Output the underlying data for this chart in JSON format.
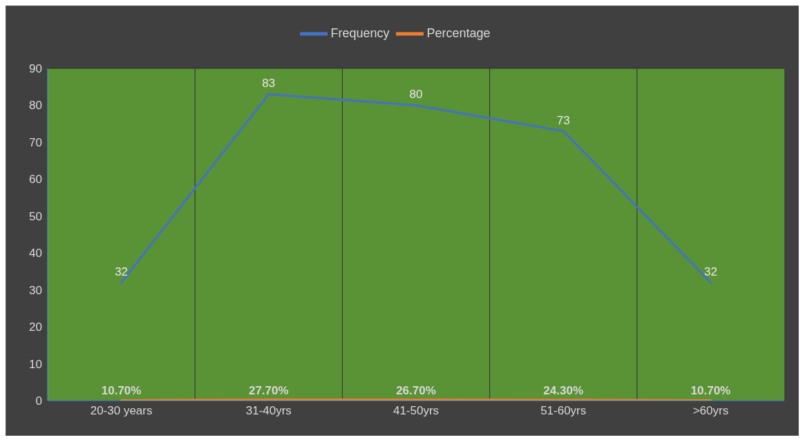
{
  "chart_data": {
    "type": "line",
    "categories": [
      "20-30 years",
      "31-40yrs",
      "41-50yrs",
      "51-60yrs",
      ">60yrs"
    ],
    "series": [
      {
        "name": "Frequency",
        "color": "#4472c4",
        "values": [
          32,
          83,
          80,
          73,
          32
        ],
        "value_labels": [
          "32",
          "83",
          "80",
          "73",
          "32"
        ]
      },
      {
        "name": "Percentage",
        "color": "#ed7d31",
        "values": [
          0.107,
          0.277,
          0.267,
          0.243,
          0.107
        ],
        "value_labels": [
          "10.70%",
          "27.70%",
          "26.70%",
          "24.30%",
          "10.70%"
        ]
      }
    ],
    "ylim": [
      0,
      90
    ],
    "yticks": [
      0,
      10,
      20,
      30,
      40,
      50,
      60,
      70,
      80,
      90
    ],
    "grid": true,
    "legend": "top",
    "marker": "none",
    "line_style": "solid"
  }
}
